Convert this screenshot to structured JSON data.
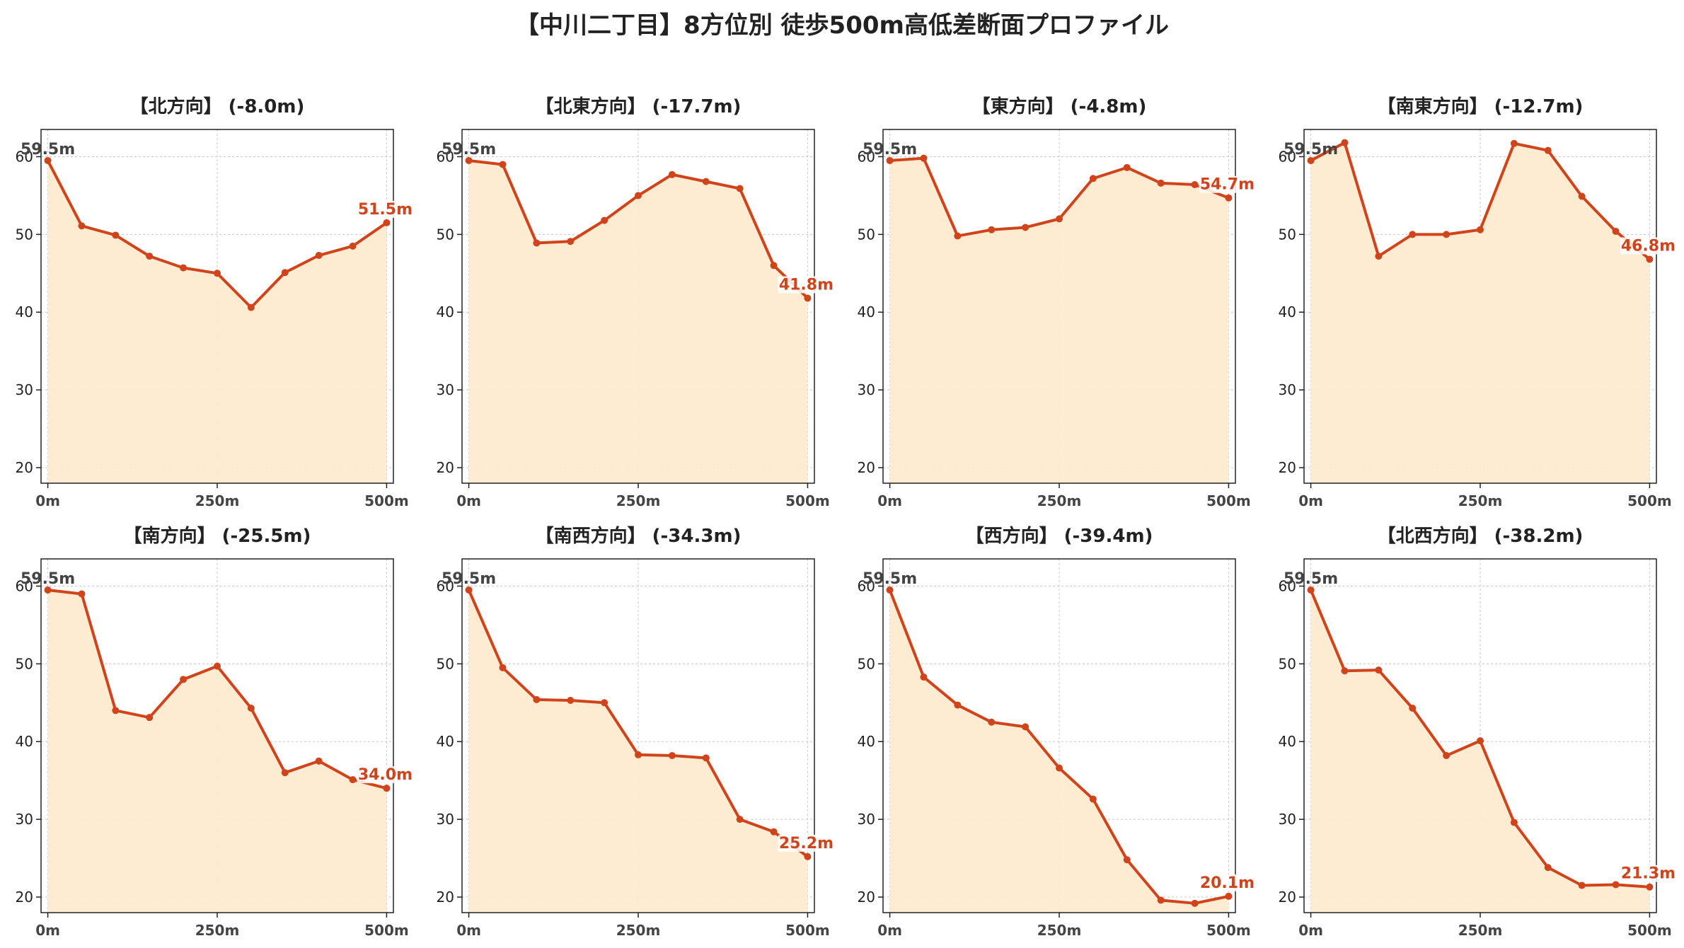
{
  "title": "【中川二丁目】8方位別 徒歩500m高低差断面プロファイル",
  "colors": {
    "line": "#d1431b",
    "fill": "#fdebd0",
    "grid": "#c8c8c8",
    "start_label": "#444444",
    "end_label": "#d1431b"
  },
  "chart_data": [
    {
      "type": "area",
      "title": "【北方向】 (-8.0m)",
      "x": [
        0,
        50,
        100,
        150,
        200,
        250,
        300,
        350,
        400,
        450,
        500
      ],
      "x_ticks": [
        0,
        250,
        500
      ],
      "x_tick_labels": [
        "0m",
        "250m",
        "500m"
      ],
      "y_ticks": [
        20,
        30,
        40,
        50,
        60
      ],
      "ylim": [
        18,
        63.5
      ],
      "xlim": [
        -10,
        510
      ],
      "grid": true,
      "values": [
        59.5,
        51.1,
        49.9,
        47.2,
        45.7,
        45.0,
        40.6,
        45.1,
        47.3,
        48.5,
        51.5
      ],
      "start_label": "59.5m",
      "end_label": "51.5m"
    },
    {
      "type": "area",
      "title": "【北東方向】 (-17.7m)",
      "x": [
        0,
        50,
        100,
        150,
        200,
        250,
        300,
        350,
        400,
        450,
        500
      ],
      "x_ticks": [
        0,
        250,
        500
      ],
      "x_tick_labels": [
        "0m",
        "250m",
        "500m"
      ],
      "y_ticks": [
        20,
        30,
        40,
        50,
        60
      ],
      "ylim": [
        18,
        63.5
      ],
      "xlim": [
        -10,
        510
      ],
      "grid": true,
      "values": [
        59.5,
        59.0,
        48.9,
        49.1,
        51.8,
        55.0,
        57.7,
        56.8,
        55.9,
        46.0,
        41.8
      ],
      "start_label": "59.5m",
      "end_label": "41.8m"
    },
    {
      "type": "area",
      "title": "【東方向】 (-4.8m)",
      "x": [
        0,
        50,
        100,
        150,
        200,
        250,
        300,
        350,
        400,
        450,
        500
      ],
      "x_ticks": [
        0,
        250,
        500
      ],
      "x_tick_labels": [
        "0m",
        "250m",
        "500m"
      ],
      "y_ticks": [
        20,
        30,
        40,
        50,
        60
      ],
      "ylim": [
        18,
        63.5
      ],
      "xlim": [
        -10,
        510
      ],
      "grid": true,
      "values": [
        59.5,
        59.8,
        49.8,
        50.6,
        50.9,
        52.0,
        57.2,
        58.6,
        56.6,
        56.4,
        54.7
      ],
      "start_label": "59.5m",
      "end_label": "54.7m"
    },
    {
      "type": "area",
      "title": "【南東方向】 (-12.7m)",
      "x": [
        0,
        50,
        100,
        150,
        200,
        250,
        300,
        350,
        400,
        450,
        500
      ],
      "x_ticks": [
        0,
        250,
        500
      ],
      "x_tick_labels": [
        "0m",
        "250m",
        "500m"
      ],
      "y_ticks": [
        20,
        30,
        40,
        50,
        60
      ],
      "ylim": [
        18,
        63.5
      ],
      "xlim": [
        -10,
        510
      ],
      "grid": true,
      "values": [
        59.5,
        61.8,
        47.2,
        50.0,
        50.0,
        50.6,
        61.7,
        60.8,
        54.9,
        50.4,
        46.8
      ],
      "start_label": "59.5m",
      "end_label": "46.8m"
    },
    {
      "type": "area",
      "title": "【南方向】 (-25.5m)",
      "x": [
        0,
        50,
        100,
        150,
        200,
        250,
        300,
        350,
        400,
        450,
        500
      ],
      "x_ticks": [
        0,
        250,
        500
      ],
      "x_tick_labels": [
        "0m",
        "250m",
        "500m"
      ],
      "y_ticks": [
        20,
        30,
        40,
        50,
        60
      ],
      "ylim": [
        18,
        63.5
      ],
      "xlim": [
        -10,
        510
      ],
      "grid": true,
      "values": [
        59.5,
        59.0,
        44.0,
        43.1,
        48.0,
        49.7,
        44.3,
        36.0,
        37.5,
        35.1,
        34.0
      ],
      "start_label": "59.5m",
      "end_label": "34.0m"
    },
    {
      "type": "area",
      "title": "【南西方向】 (-34.3m)",
      "x": [
        0,
        50,
        100,
        150,
        200,
        250,
        300,
        350,
        400,
        450,
        500
      ],
      "x_ticks": [
        0,
        250,
        500
      ],
      "x_tick_labels": [
        "0m",
        "250m",
        "500m"
      ],
      "y_ticks": [
        20,
        30,
        40,
        50,
        60
      ],
      "ylim": [
        18,
        63.5
      ],
      "xlim": [
        -10,
        510
      ],
      "grid": true,
      "values": [
        59.5,
        49.5,
        45.4,
        45.3,
        45.0,
        38.3,
        38.2,
        37.9,
        30.0,
        28.4,
        25.2
      ],
      "start_label": "59.5m",
      "end_label": "25.2m"
    },
    {
      "type": "area",
      "title": "【西方向】 (-39.4m)",
      "x": [
        0,
        50,
        100,
        150,
        200,
        250,
        300,
        350,
        400,
        450,
        500
      ],
      "x_ticks": [
        0,
        250,
        500
      ],
      "x_tick_labels": [
        "0m",
        "250m",
        "500m"
      ],
      "y_ticks": [
        20,
        30,
        40,
        50,
        60
      ],
      "ylim": [
        18,
        63.5
      ],
      "xlim": [
        -10,
        510
      ],
      "grid": true,
      "values": [
        59.5,
        48.3,
        44.7,
        42.5,
        41.9,
        36.6,
        32.6,
        24.8,
        19.6,
        19.2,
        20.1
      ],
      "start_label": "59.5m",
      "end_label": "20.1m"
    },
    {
      "type": "area",
      "title": "【北西方向】 (-38.2m)",
      "x": [
        0,
        50,
        100,
        150,
        200,
        250,
        300,
        350,
        400,
        450,
        500
      ],
      "x_ticks": [
        0,
        250,
        500
      ],
      "x_tick_labels": [
        "0m",
        "250m",
        "500m"
      ],
      "y_ticks": [
        20,
        30,
        40,
        50,
        60
      ],
      "ylim": [
        18,
        63.5
      ],
      "xlim": [
        -10,
        510
      ],
      "grid": true,
      "values": [
        59.5,
        49.1,
        49.2,
        44.3,
        38.2,
        40.1,
        29.6,
        23.8,
        21.5,
        21.6,
        21.3
      ],
      "start_label": "59.5m",
      "end_label": "21.3m"
    }
  ]
}
